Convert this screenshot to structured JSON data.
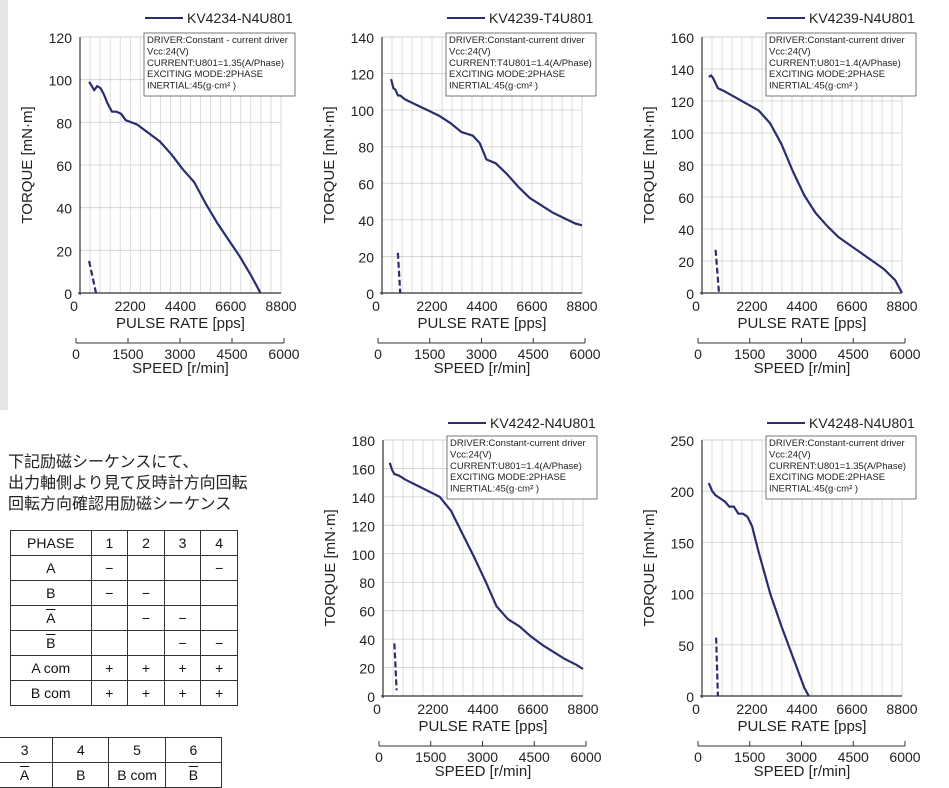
{
  "colors": {
    "curve": "#2a2d6e",
    "grid": "#cfcfcf",
    "axis": "#333333",
    "plot_bg": "#ffffff",
    "panel_bg": "#e5e5e5"
  },
  "notes": [
    "下記励磁シーケンスにて、",
    "出力軸側より見て反時計方向回転",
    "回転方向確認用励磁シーケンス"
  ],
  "phase_table": {
    "header": [
      "PHASE",
      "1",
      "2",
      "3",
      "4"
    ],
    "rows": [
      {
        "label": "A",
        "cells": [
          "−",
          "",
          "",
          "−"
        ]
      },
      {
        "label": "B",
        "cells": [
          "−",
          "−",
          "",
          ""
        ]
      },
      {
        "label": "A",
        "overline": true,
        "cells": [
          "",
          "−",
          "−",
          ""
        ]
      },
      {
        "label": "B",
        "overline": true,
        "cells": [
          "",
          "",
          "−",
          "−"
        ]
      },
      {
        "label": "A com",
        "cells": [
          "+",
          "+",
          "+",
          "+"
        ]
      },
      {
        "label": "B com",
        "cells": [
          "+",
          "+",
          "+",
          "+"
        ]
      }
    ]
  },
  "pin_table": {
    "numbers": [
      "3",
      "4",
      "5",
      "6"
    ],
    "labels": [
      {
        "text": "A",
        "overline": true
      },
      {
        "text": "B",
        "overline": false
      },
      {
        "text": "B com",
        "overline": false
      },
      {
        "text": "B",
        "overline": true
      }
    ]
  },
  "chart_data": [
    {
      "type": "line",
      "legend": "KV4234-N4U801",
      "info": [
        "DRIVER:Constant - current driver",
        "Vcc:24(V)",
        "CURRENT:U801=1.35(A/Phase)",
        "EXCITING MODE:2PHASE",
        "INERTIAL:45(g·cm² )"
      ],
      "xlabel": "PULSE RATE [pps]",
      "ylabel": "TORQUE [mN·m]",
      "x2label": "SPEED [r/min]",
      "xlim": [
        0,
        8800
      ],
      "ylim": [
        0,
        120
      ],
      "x_ticks": [
        "0",
        "2200",
        "4400",
        "6600",
        "8800"
      ],
      "y_ticks": [
        "0",
        "20",
        "40",
        "60",
        "80",
        "100",
        "120"
      ],
      "speed_ticks": [
        "0",
        "1500",
        "3000",
        "4500",
        "6000"
      ],
      "pull_out": [
        [
          400,
          99
        ],
        [
          520,
          97
        ],
        [
          620,
          95
        ],
        [
          750,
          97
        ],
        [
          900,
          96
        ],
        [
          1050,
          93
        ],
        [
          1200,
          89
        ],
        [
          1400,
          85
        ],
        [
          1600,
          85
        ],
        [
          1800,
          84
        ],
        [
          2000,
          81
        ],
        [
          2500,
          79
        ],
        [
          3000,
          75
        ],
        [
          3500,
          71
        ],
        [
          4000,
          65
        ],
        [
          4500,
          58
        ],
        [
          5000,
          52
        ],
        [
          5500,
          42
        ],
        [
          6000,
          33
        ],
        [
          6500,
          25
        ],
        [
          7000,
          17
        ],
        [
          7500,
          8
        ],
        [
          7800,
          2
        ],
        [
          7900,
          0
        ]
      ],
      "pull_in": [
        [
          400,
          15
        ],
        [
          700,
          0
        ]
      ]
    },
    {
      "type": "line",
      "legend": "KV4239-T4U801",
      "info": [
        "DRIVER:Constant-current driver",
        "Vcc:24(V)",
        "CURRENT:T4U801=1.4(A/Phase)",
        "EXCITING MODE:2PHASE",
        "INERTIAL:45(g·cm² )"
      ],
      "xlabel": "PULSE RATE [pps]",
      "ylabel": "TORQUE [mN·m]",
      "x2label": "SPEED [r/min]",
      "xlim": [
        0,
        8800
      ],
      "ylim": [
        0,
        140
      ],
      "x_ticks": [
        "0",
        "2200",
        "4400",
        "6600",
        "8800"
      ],
      "y_ticks": [
        "0",
        "20",
        "40",
        "60",
        "80",
        "100",
        "120",
        "140"
      ],
      "speed_ticks": [
        "0",
        "1500",
        "3000",
        "4500",
        "6000"
      ],
      "pull_out": [
        [
          400,
          117
        ],
        [
          500,
          112
        ],
        [
          600,
          111
        ],
        [
          700,
          108
        ],
        [
          800,
          108
        ],
        [
          1000,
          106
        ],
        [
          1500,
          103
        ],
        [
          2000,
          100
        ],
        [
          2500,
          97
        ],
        [
          3000,
          93
        ],
        [
          3500,
          88
        ],
        [
          4000,
          86
        ],
        [
          4300,
          82
        ],
        [
          4600,
          73
        ],
        [
          5000,
          71
        ],
        [
          5500,
          65
        ],
        [
          6000,
          58
        ],
        [
          6500,
          52
        ],
        [
          7000,
          48
        ],
        [
          7500,
          44
        ],
        [
          8000,
          41
        ],
        [
          8500,
          38
        ],
        [
          8800,
          37
        ]
      ],
      "pull_in": [
        [
          700,
          22
        ],
        [
          800,
          0
        ]
      ]
    },
    {
      "type": "line",
      "legend": "KV4239-N4U801",
      "info": [
        "DRIVER:Constant-current driver",
        "Vcc:24(V)",
        "CURRENT:U801=1.4(A/Phase)",
        "EXCITING MODE:2PHASE",
        "INERTIAL:45(g·cm² )"
      ],
      "xlabel": "PULSE RATE [pps]",
      "ylabel": "TORQUE [mN·m]",
      "x2label": "SPEED [r/min]",
      "xlim": [
        0,
        8800
      ],
      "ylim": [
        0,
        160
      ],
      "x_ticks": [
        "0",
        "2200",
        "4400",
        "6600",
        "8800"
      ],
      "y_ticks": [
        "0",
        "20",
        "40",
        "60",
        "80",
        "100",
        "120",
        "140",
        "160"
      ],
      "speed_ticks": [
        "0",
        "1500",
        "3000",
        "4500",
        "6000"
      ],
      "pull_out": [
        [
          300,
          135
        ],
        [
          400,
          136
        ],
        [
          500,
          134
        ],
        [
          600,
          131
        ],
        [
          700,
          128
        ],
        [
          1000,
          126
        ],
        [
          1500,
          122
        ],
        [
          2000,
          118
        ],
        [
          2500,
          114
        ],
        [
          3000,
          106
        ],
        [
          3500,
          93
        ],
        [
          4000,
          76
        ],
        [
          4500,
          61
        ],
        [
          5000,
          50
        ],
        [
          5500,
          42
        ],
        [
          6000,
          35
        ],
        [
          6500,
          30
        ],
        [
          7000,
          25
        ],
        [
          7500,
          20
        ],
        [
          8000,
          15
        ],
        [
          8500,
          8
        ],
        [
          8800,
          0
        ]
      ],
      "pull_in": [
        [
          600,
          27
        ],
        [
          750,
          0
        ]
      ]
    },
    {
      "type": "line",
      "legend": "KV4242-N4U801",
      "info": [
        "DRIVER:Constant-current driver",
        "Vcc:24(V)",
        "CURRENT:U801=1.4(A/Phase)",
        "EXCITING MODE:2PHASE",
        "INERTIAL:45(g·cm² )"
      ],
      "xlabel": "PULSE RATE [pps]",
      "ylabel": "TORQUE [mN·m]",
      "x2label": "SPEED [r/min]",
      "xlim": [
        0,
        8800
      ],
      "ylim": [
        0,
        180
      ],
      "x_ticks": [
        "0",
        "2200",
        "4400",
        "6600",
        "8800"
      ],
      "y_ticks": [
        "0",
        "20",
        "40",
        "60",
        "80",
        "100",
        "120",
        "140",
        "160",
        "180"
      ],
      "speed_ticks": [
        "0",
        "1500",
        "3000",
        "4500",
        "6000"
      ],
      "pull_out": [
        [
          300,
          164
        ],
        [
          400,
          159
        ],
        [
          500,
          156
        ],
        [
          700,
          155
        ],
        [
          1000,
          152
        ],
        [
          1500,
          148
        ],
        [
          2000,
          144
        ],
        [
          2500,
          140
        ],
        [
          3000,
          130
        ],
        [
          3500,
          114
        ],
        [
          4000,
          98
        ],
        [
          4500,
          81
        ],
        [
          5000,
          63
        ],
        [
          5500,
          54
        ],
        [
          6000,
          49
        ],
        [
          6500,
          42
        ],
        [
          7000,
          36
        ],
        [
          7500,
          31
        ],
        [
          8000,
          26
        ],
        [
          8500,
          22
        ],
        [
          8800,
          19
        ]
      ],
      "pull_in": [
        [
          500,
          37
        ],
        [
          600,
          4
        ]
      ]
    },
    {
      "type": "line",
      "legend": "KV4248-N4U801",
      "info": [
        "DRIVER:Constant-current driver",
        "Vcc:24(V)",
        "CURRENT:U801=1.35(A/Phase)",
        "EXCITING MODE:2PHASE",
        "INERTIAL:45(g·cm² )"
      ],
      "xlabel": "PULSE RATE [pps]",
      "ylabel": "TORQUE [mN·m]",
      "x2label": "SPEED [r/min]",
      "xlim": [
        0,
        8800
      ],
      "ylim": [
        0,
        250
      ],
      "x_ticks": [
        "0",
        "2200",
        "4400",
        "6600",
        "8800"
      ],
      "y_ticks": [
        "0",
        "50",
        "100",
        "150",
        "200",
        "250"
      ],
      "speed_ticks": [
        "0",
        "1500",
        "3000",
        "4500",
        "6000"
      ],
      "pull_out": [
        [
          300,
          208
        ],
        [
          450,
          200
        ],
        [
          600,
          196
        ],
        [
          800,
          193
        ],
        [
          1000,
          190
        ],
        [
          1200,
          185
        ],
        [
          1400,
          185
        ],
        [
          1600,
          178
        ],
        [
          1800,
          178
        ],
        [
          2000,
          175
        ],
        [
          2200,
          166
        ],
        [
          2500,
          140
        ],
        [
          3000,
          100
        ],
        [
          3500,
          68
        ],
        [
          4000,
          38
        ],
        [
          4500,
          8
        ],
        [
          4700,
          0
        ]
      ],
      "pull_in": [
        [
          620,
          57
        ],
        [
          700,
          0
        ]
      ]
    }
  ]
}
